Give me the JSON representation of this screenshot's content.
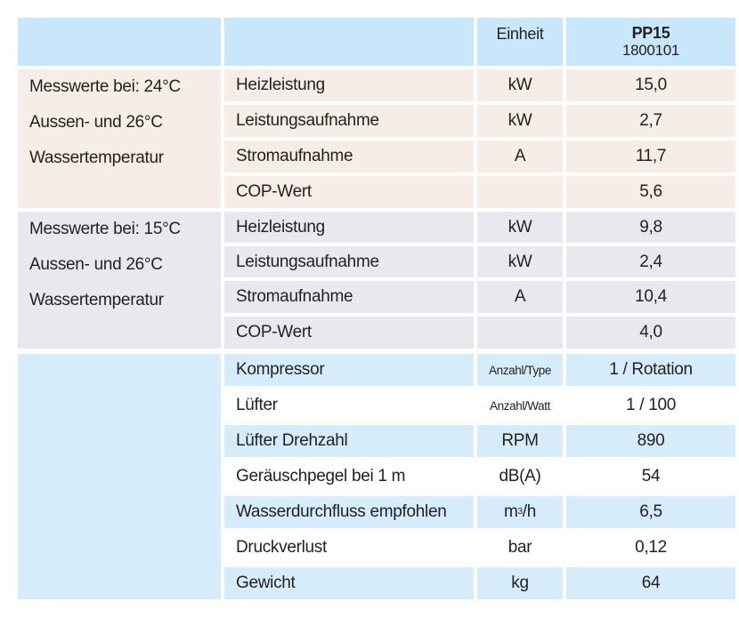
{
  "header": {
    "unit_label": "Einheit",
    "model": "PP15",
    "model_number": "1800101"
  },
  "groups": [
    {
      "conditions": [
        "Messwerte bei: 24°C",
        "Aussen- und 26°C",
        "Wassertemperatur"
      ],
      "rows": [
        {
          "label": "Heizleistung",
          "unit": "kW",
          "value": "15,0"
        },
        {
          "label": "Leistungsaufnahme",
          "unit": "kW",
          "value": "2,7"
        },
        {
          "label": "Stromaufnahme",
          "unit": "A",
          "value": "11,7"
        },
        {
          "label": "COP-Wert",
          "unit": "",
          "value": "5,6"
        }
      ]
    },
    {
      "conditions": [
        "Messwerte bei: 15°C",
        "Aussen- und 26°C",
        "Wassertemperatur"
      ],
      "rows": [
        {
          "label": "Heizleistung",
          "unit": "kW",
          "value": "9,8"
        },
        {
          "label": "Leistungsaufnahme",
          "unit": "kW",
          "value": "2,4"
        },
        {
          "label": "Stromaufnahme",
          "unit": "A",
          "value": "10,4"
        },
        {
          "label": "COP-Wert",
          "unit": "",
          "value": "4,0"
        }
      ]
    }
  ],
  "specs": [
    {
      "label": "Kompressor",
      "unit": "Anzahl/Type",
      "value": "1 / Rotation"
    },
    {
      "label": "Lüfter",
      "unit": "Anzahl/Watt",
      "value": "1 / 100"
    },
    {
      "label": "Lüfter Drehzahl",
      "unit": "RPM",
      "value": "890"
    },
    {
      "label": "Geräuschpegel bei 1 m",
      "unit": "dB(A)",
      "value": "54"
    },
    {
      "label": "Wasserdurchfluss empfohlen",
      "unit_base": "m",
      "unit_sup": "3",
      "unit_tail": "/h",
      "value": "6,5"
    },
    {
      "label": "Druckverlust",
      "unit": "bar",
      "value": "0,12"
    },
    {
      "label": "Gewicht",
      "unit": "kg",
      "value": "64"
    }
  ]
}
